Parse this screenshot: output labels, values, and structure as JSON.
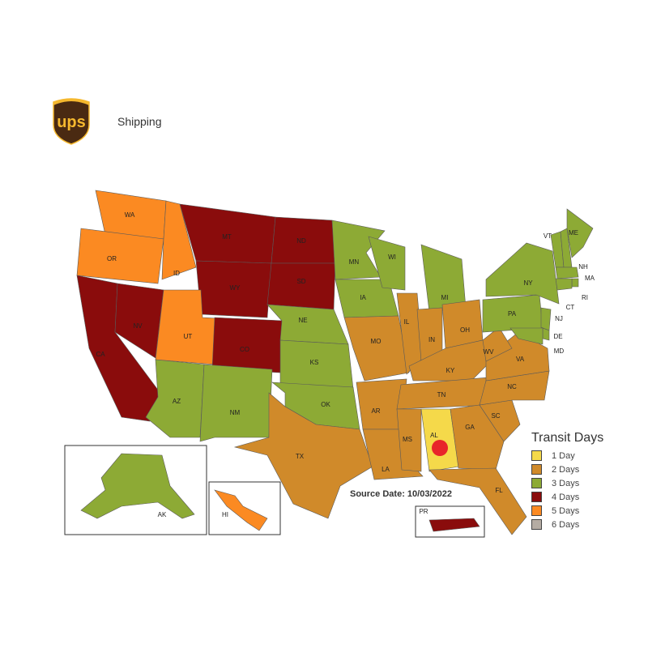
{
  "header": {
    "logo_text": "ups",
    "title": "Shipping"
  },
  "map": {
    "source_date": "Source Date: 10/03/2022",
    "marker_color": "#e8252a",
    "marker_state": "AL",
    "states": [
      {
        "abbr": "WA",
        "days": 5
      },
      {
        "abbr": "OR",
        "days": 5
      },
      {
        "abbr": "CA",
        "days": 4
      },
      {
        "abbr": "NV",
        "days": 4
      },
      {
        "abbr": "ID",
        "days": 5
      },
      {
        "abbr": "MT",
        "days": 4
      },
      {
        "abbr": "WY",
        "days": 4
      },
      {
        "abbr": "UT",
        "days": 5
      },
      {
        "abbr": "CO",
        "days": 4
      },
      {
        "abbr": "AZ",
        "days": 3
      },
      {
        "abbr": "NM",
        "days": 3
      },
      {
        "abbr": "ND",
        "days": 4
      },
      {
        "abbr": "SD",
        "days": 4
      },
      {
        "abbr": "NE",
        "days": 3
      },
      {
        "abbr": "KS",
        "days": 3
      },
      {
        "abbr": "OK",
        "days": 3
      },
      {
        "abbr": "TX",
        "days": 2
      },
      {
        "abbr": "MN",
        "days": 3
      },
      {
        "abbr": "IA",
        "days": 3
      },
      {
        "abbr": "MO",
        "days": 2
      },
      {
        "abbr": "AR",
        "days": 2
      },
      {
        "abbr": "LA",
        "days": 2
      },
      {
        "abbr": "WI",
        "days": 3
      },
      {
        "abbr": "IL",
        "days": 2
      },
      {
        "abbr": "MI",
        "days": 3
      },
      {
        "abbr": "IN",
        "days": 2
      },
      {
        "abbr": "OH",
        "days": 2
      },
      {
        "abbr": "KY",
        "days": 2
      },
      {
        "abbr": "TN",
        "days": 2
      },
      {
        "abbr": "MS",
        "days": 2
      },
      {
        "abbr": "AL",
        "days": 1
      },
      {
        "abbr": "GA",
        "days": 2
      },
      {
        "abbr": "FL",
        "days": 2
      },
      {
        "abbr": "SC",
        "days": 2
      },
      {
        "abbr": "NC",
        "days": 2
      },
      {
        "abbr": "VA",
        "days": 2
      },
      {
        "abbr": "WV",
        "days": 2
      },
      {
        "abbr": "PA",
        "days": 3
      },
      {
        "abbr": "NY",
        "days": 3
      },
      {
        "abbr": "VT",
        "days": 3
      },
      {
        "abbr": "NH",
        "days": 3
      },
      {
        "abbr": "ME",
        "days": 3
      },
      {
        "abbr": "MA",
        "days": 3
      },
      {
        "abbr": "RI",
        "days": 3
      },
      {
        "abbr": "CT",
        "days": 3
      },
      {
        "abbr": "NJ",
        "days": 3
      },
      {
        "abbr": "DE",
        "days": 3
      },
      {
        "abbr": "MD",
        "days": 3
      },
      {
        "abbr": "AK",
        "days": 3
      },
      {
        "abbr": "HI",
        "days": 5
      },
      {
        "abbr": "PR",
        "days": 4
      }
    ]
  },
  "legend": {
    "title": "Transit Days",
    "items": [
      {
        "label": "1 Day",
        "days": 1,
        "color": "#f5d94a"
      },
      {
        "label": "2 Days",
        "days": 2,
        "color": "#d08a2a"
      },
      {
        "label": "3 Days",
        "days": 3,
        "color": "#8daa35"
      },
      {
        "label": "4 Days",
        "days": 4,
        "color": "#8a0c0c"
      },
      {
        "label": "5 Days",
        "days": 5,
        "color": "#fb8a22"
      },
      {
        "label": "6 Days",
        "days": 6,
        "color": "#b5aca3"
      }
    ]
  }
}
